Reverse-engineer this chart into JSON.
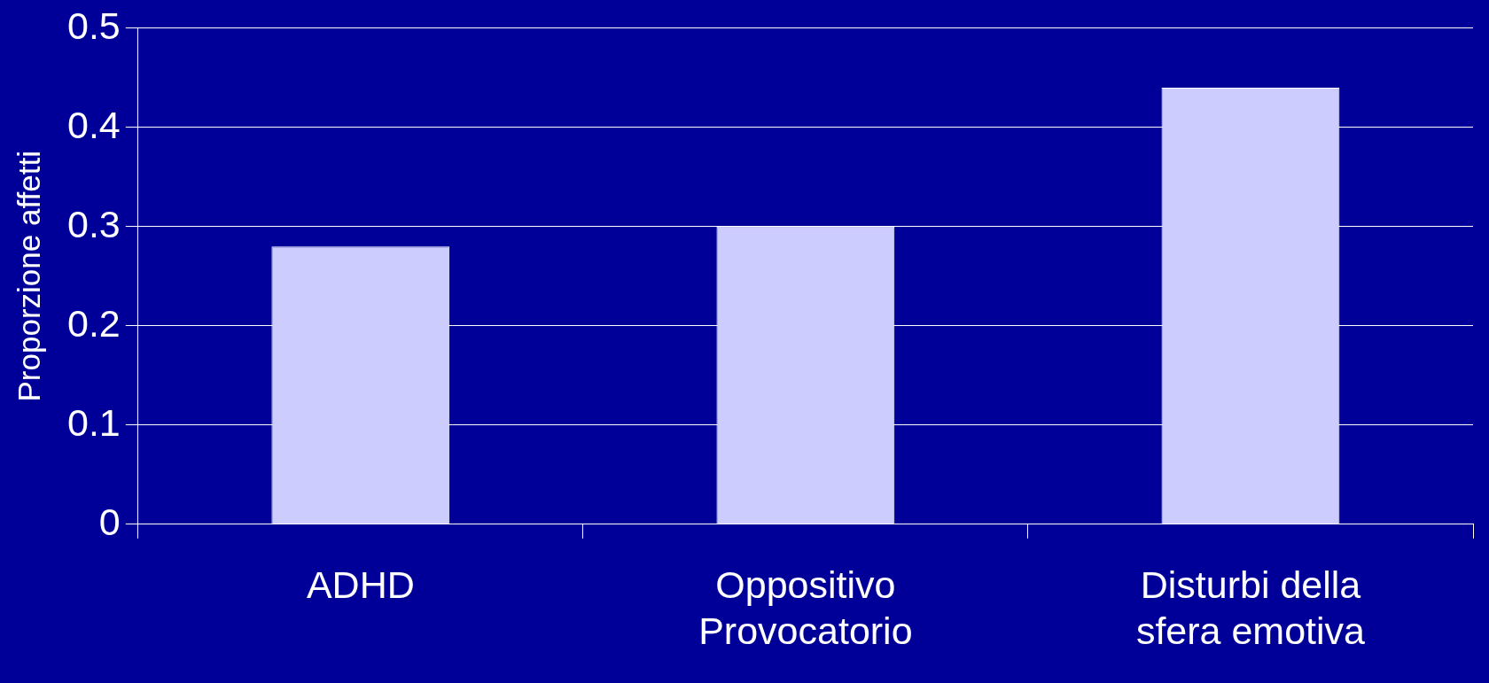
{
  "chart_data": {
    "type": "bar",
    "ylabel": "Proporzione affetti",
    "categories": [
      "ADHD",
      "Oppositivo\nProvocatorio",
      "Disturbi della\nsfera emotiva"
    ],
    "values": [
      0.28,
      0.3,
      0.44
    ],
    "color": "#ccccff",
    "ylim": [
      0,
      0.5
    ],
    "yticks": [
      0,
      {
        "value": 0.1,
        "label": "0.1"
      },
      {
        "value": 0.2,
        "label": "0.2"
      },
      {
        "value": 0.3,
        "label": "0.3"
      },
      {
        "value": 0.4,
        "label": "0.4"
      },
      {
        "value": 0.5,
        "label": "0.5"
      }
    ],
    "grid": "y",
    "legend": false
  }
}
